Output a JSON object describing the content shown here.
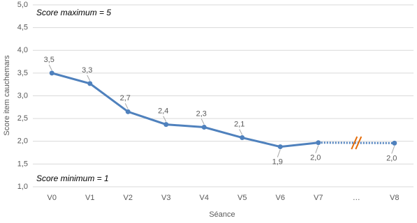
{
  "chart_data": {
    "type": "line",
    "x_label": "Séance",
    "y_label": "Score item cauchemars",
    "annotations": [
      "Score maximum = 5",
      "Score minimum = 1"
    ],
    "categories": [
      "V0",
      "V1",
      "V2",
      "V3",
      "V4",
      "V5",
      "V6",
      "V7",
      "…",
      "V8"
    ],
    "values": [
      3.5,
      3.27,
      2.65,
      2.37,
      2.31,
      2.08,
      1.88,
      1.97,
      null,
      1.96
    ],
    "value_labels": [
      "3,5",
      "3,3",
      "2,7",
      "2,4",
      "2,3",
      "2,1",
      "1,9",
      "2,0",
      null,
      "2,0"
    ],
    "color": "#4f81bd",
    "ylim": [
      1,
      5
    ],
    "yticks": [
      {
        "value": 1,
        "label": "1,0"
      },
      {
        "value": 1.5,
        "label": "1,5"
      },
      {
        "value": 2,
        "label": "2,0"
      },
      {
        "value": 2.5,
        "label": "2,5"
      },
      {
        "value": 3,
        "label": "3,0"
      },
      {
        "value": 3.5,
        "label": "3,5"
      },
      {
        "value": 4,
        "label": "4,0"
      },
      {
        "value": 4.5,
        "label": "4,5"
      },
      {
        "value": 5,
        "label": "5,0"
      }
    ],
    "grid": true
  }
}
